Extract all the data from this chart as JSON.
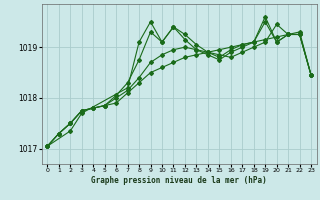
{
  "title": "",
  "xlabel": "Graphe pression niveau de la mer (hPa)",
  "bg_color": "#cce8e8",
  "grid_color": "#aacccc",
  "line_color": "#1a6b1a",
  "ylim": [
    1016.7,
    1019.85
  ],
  "xlim": [
    -0.5,
    23.5
  ],
  "yticks": [
    1017,
    1018,
    1019
  ],
  "xticks": [
    0,
    1,
    2,
    3,
    4,
    5,
    6,
    7,
    8,
    9,
    10,
    11,
    12,
    13,
    14,
    15,
    16,
    17,
    18,
    19,
    20,
    21,
    22,
    23
  ],
  "series": [
    {
      "x": [
        0,
        1,
        2,
        3,
        4,
        5,
        6,
        7,
        8,
        9,
        10,
        11,
        12,
        13,
        14,
        15,
        16,
        17,
        18,
        19,
        20,
        21,
        22,
        23
      ],
      "y": [
        1017.05,
        1017.3,
        1017.5,
        1017.75,
        1017.8,
        1017.85,
        1017.9,
        1018.1,
        1018.3,
        1018.5,
        1018.6,
        1018.7,
        1018.8,
        1018.85,
        1018.9,
        1018.95,
        1019.0,
        1019.05,
        1019.1,
        1019.15,
        1019.2,
        1019.25,
        1019.3,
        1018.45
      ]
    },
    {
      "x": [
        0,
        1,
        2,
        3,
        4,
        5,
        6,
        7,
        8,
        9,
        10,
        11,
        12,
        13,
        14,
        15,
        16,
        17,
        18,
        19,
        20,
        21,
        22,
        23
      ],
      "y": [
        1017.05,
        1017.3,
        1017.5,
        1017.75,
        1017.8,
        1017.85,
        1018.0,
        1018.15,
        1018.4,
        1018.7,
        1018.85,
        1018.95,
        1019.0,
        1018.95,
        1018.9,
        1018.85,
        1018.8,
        1018.9,
        1019.0,
        1019.1,
        1019.45,
        1019.25,
        1019.25,
        1018.45
      ]
    },
    {
      "x": [
        0,
        1,
        2,
        3,
        4,
        5,
        6,
        7,
        8,
        9,
        10,
        11,
        12,
        13,
        14,
        15,
        16,
        17,
        18,
        19,
        20,
        21,
        22,
        23
      ],
      "y": [
        1017.05,
        1017.3,
        1017.5,
        1017.75,
        1017.8,
        1017.85,
        1018.05,
        1018.3,
        1018.75,
        1019.3,
        1019.1,
        1019.4,
        1019.15,
        1018.95,
        1018.85,
        1018.75,
        1018.9,
        1019.0,
        1019.1,
        1019.5,
        1019.1,
        1019.25,
        1019.25,
        1018.45
      ]
    },
    {
      "x": [
        0,
        2,
        3,
        7,
        8,
        9,
        10,
        11,
        12,
        13,
        14,
        15,
        16,
        17,
        18,
        19,
        20,
        21,
        22,
        23
      ],
      "y": [
        1017.05,
        1017.35,
        1017.7,
        1018.2,
        1019.1,
        1019.5,
        1019.1,
        1019.4,
        1019.25,
        1019.05,
        1018.9,
        1018.8,
        1018.95,
        1019.05,
        1019.1,
        1019.6,
        1019.1,
        1019.25,
        1019.25,
        1018.45
      ]
    }
  ]
}
